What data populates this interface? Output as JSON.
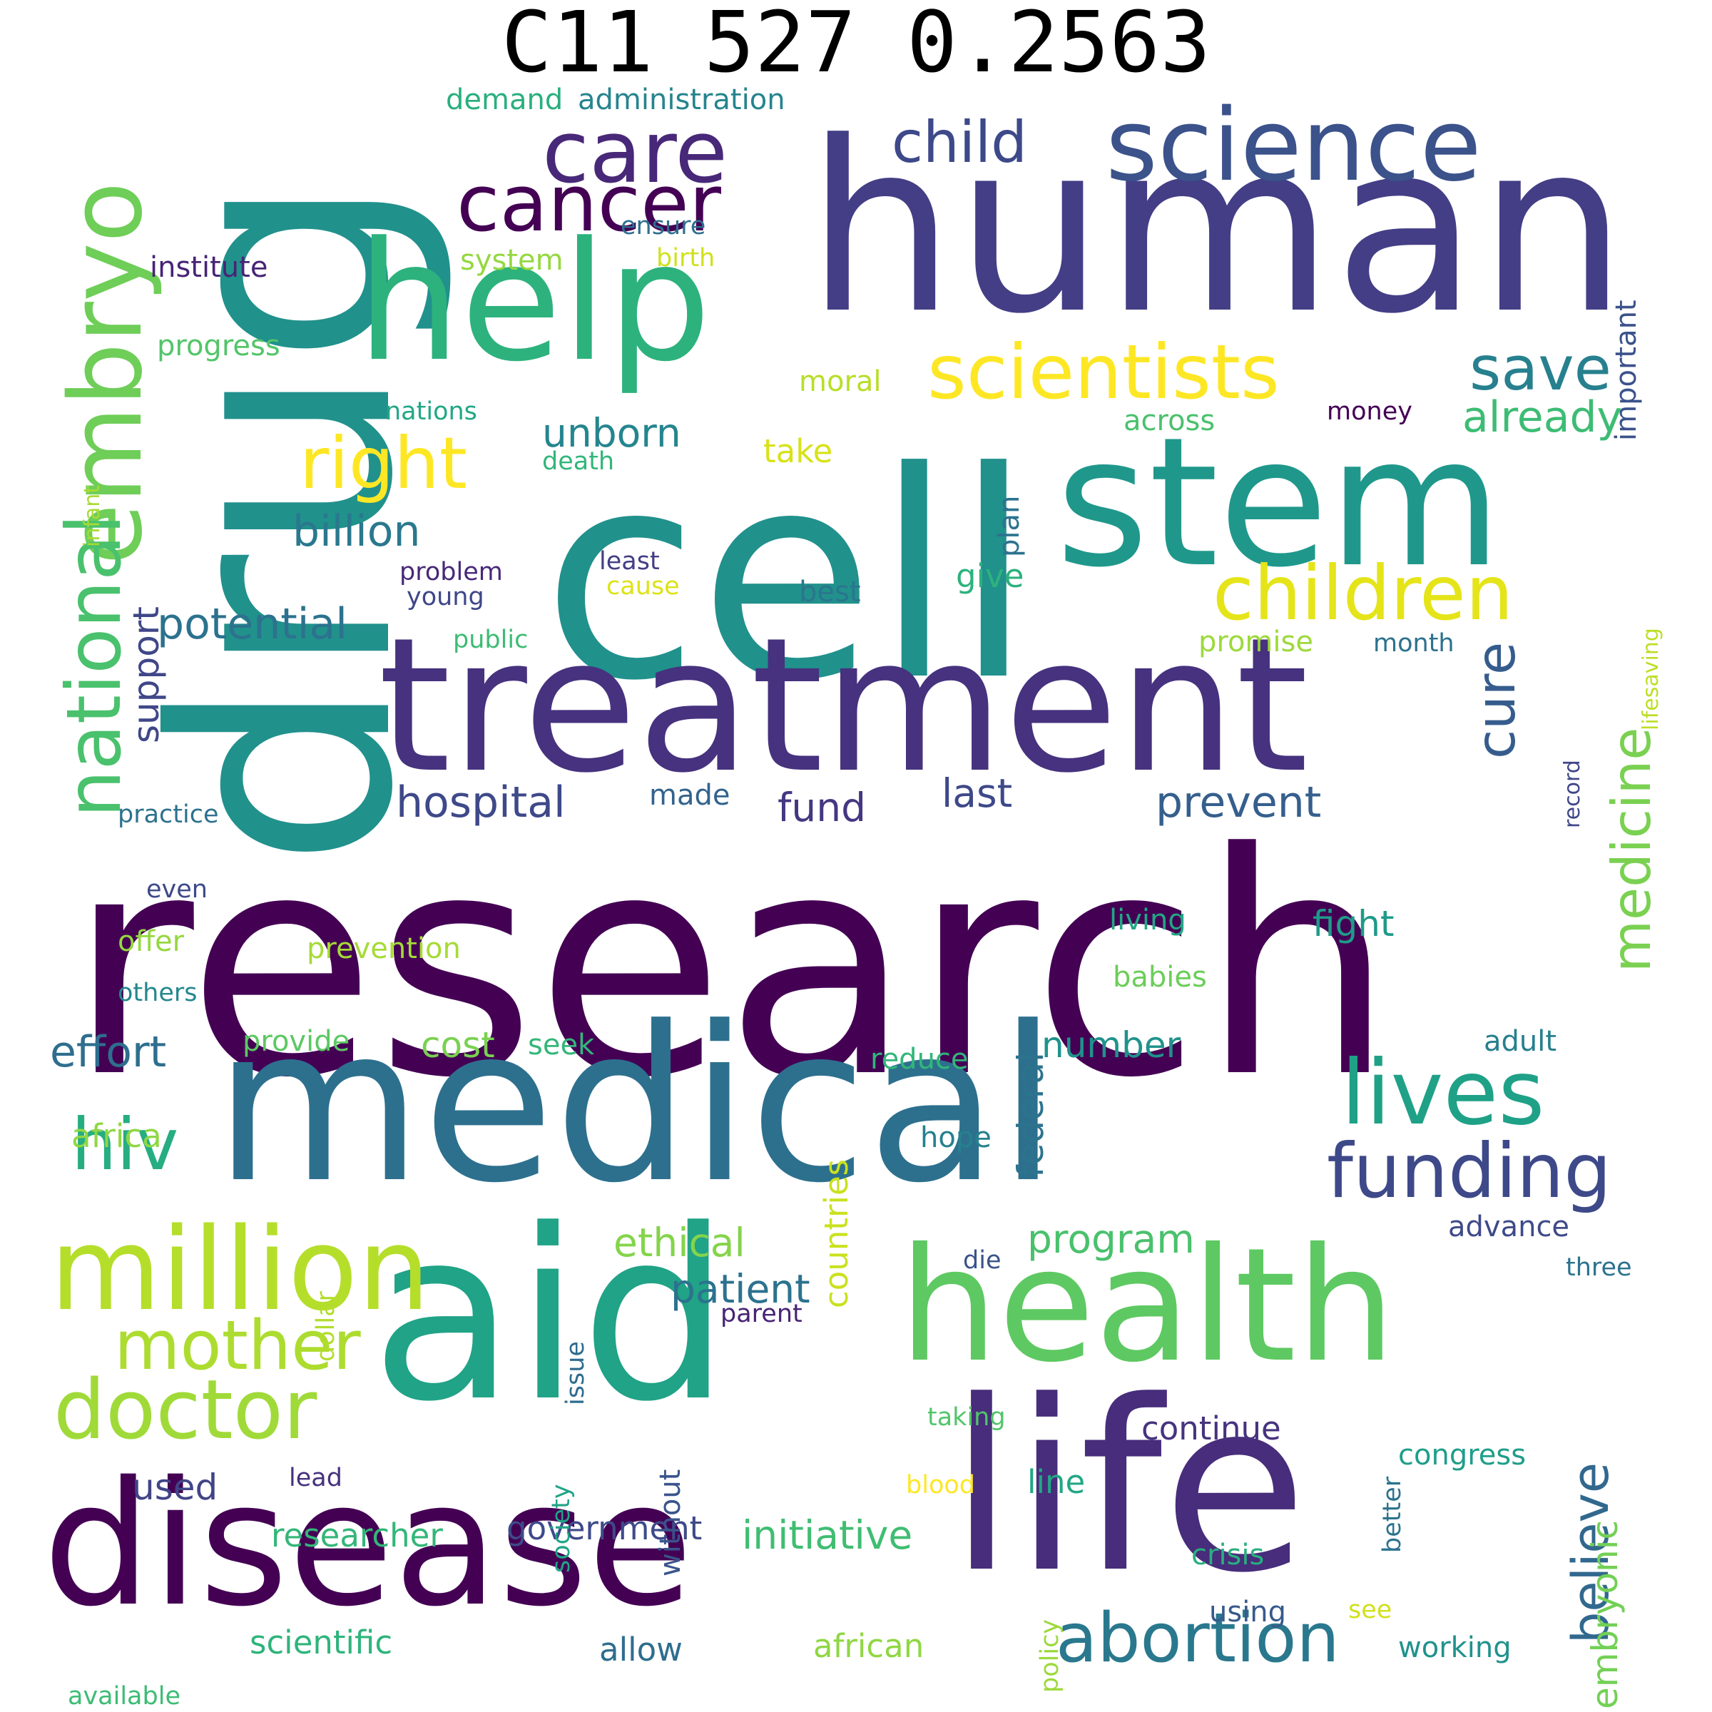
{
  "title": "C11 527 0.2563",
  "words": [
    {
      "text": "research",
      "color": "#440154"
    },
    {
      "text": "human",
      "color": "#433e85"
    },
    {
      "text": "drug",
      "color": "#21918c"
    },
    {
      "text": "cell",
      "color": "#21918c"
    },
    {
      "text": "medical",
      "color": "#2d708e"
    },
    {
      "text": "treatment",
      "color": "#46327e"
    },
    {
      "text": "aid",
      "color": "#20a386"
    },
    {
      "text": "life",
      "color": "#472d7b"
    },
    {
      "text": "disease",
      "color": "#440154"
    },
    {
      "text": "health",
      "color": "#5ec962"
    },
    {
      "text": "stem",
      "color": "#1f988b"
    },
    {
      "text": "help",
      "color": "#2db27d"
    },
    {
      "text": "million",
      "color": "#b5de2b"
    },
    {
      "text": "science",
      "color": "#3b528b"
    },
    {
      "text": "embryo",
      "color": "#6ece58"
    },
    {
      "text": "care",
      "color": "#482878"
    },
    {
      "text": "scientists",
      "color": "#fde725"
    },
    {
      "text": "cancer",
      "color": "#440154"
    },
    {
      "text": "national",
      "color": "#4ac16d"
    },
    {
      "text": "children",
      "color": "#e5e419"
    },
    {
      "text": "funding",
      "color": "#3e4989"
    },
    {
      "text": "lives",
      "color": "#1fa187"
    },
    {
      "text": "doctor",
      "color": "#a0da39"
    },
    {
      "text": "mother",
      "color": "#addc30"
    },
    {
      "text": "abortion",
      "color": "#2a788e"
    },
    {
      "text": "right",
      "color": "#fde725"
    },
    {
      "text": "medicine",
      "color": "#7ad151"
    },
    {
      "text": "child",
      "color": "#3e4989"
    },
    {
      "text": "hiv",
      "color": "#26ad81"
    },
    {
      "text": "save",
      "color": "#27808e"
    },
    {
      "text": "cure",
      "color": "#365c8d"
    },
    {
      "text": "believe",
      "color": "#31688e"
    },
    {
      "text": "embryonic",
      "color": "#73d056"
    },
    {
      "text": "billion",
      "color": "#2a788e"
    },
    {
      "text": "unborn",
      "color": "#25858e"
    },
    {
      "text": "hospital",
      "color": "#3e4989"
    },
    {
      "text": "potential",
      "color": "#2c728e"
    },
    {
      "text": "already",
      "color": "#3dbc74"
    },
    {
      "text": "effort",
      "color": "#2e6e8e"
    },
    {
      "text": "program",
      "color": "#4ac16d"
    },
    {
      "text": "prevent",
      "color": "#355f8d"
    },
    {
      "text": "ethical",
      "color": "#84d44b"
    },
    {
      "text": "patient",
      "color": "#2c728e"
    },
    {
      "text": "support",
      "color": "#3f4788"
    },
    {
      "text": "initiative",
      "color": "#40bd72"
    },
    {
      "text": "federal",
      "color": "#2c738e"
    },
    {
      "text": "fund",
      "color": "#453781"
    },
    {
      "text": "last",
      "color": "#3e4989"
    },
    {
      "text": "countries",
      "color": "#cae11f"
    },
    {
      "text": "number",
      "color": "#20928c"
    },
    {
      "text": "cost",
      "color": "#7ad151"
    },
    {
      "text": "used",
      "color": "#414487"
    },
    {
      "text": "continue",
      "color": "#46337e"
    },
    {
      "text": "researcher",
      "color": "#34b679"
    },
    {
      "text": "government",
      "color": "#3e4a89"
    },
    {
      "text": "scientific",
      "color": "#2fb47c"
    },
    {
      "text": "african",
      "color": "#8fd744"
    },
    {
      "text": "allow",
      "color": "#2e6e8e"
    },
    {
      "text": "africa",
      "color": "#8fd744"
    },
    {
      "text": "fight",
      "color": "#1f9a8a"
    },
    {
      "text": "important",
      "color": "#3b528b"
    },
    {
      "text": "congress",
      "color": "#1f9e89"
    },
    {
      "text": "line",
      "color": "#22a785"
    },
    {
      "text": "advance",
      "color": "#3e4a89"
    },
    {
      "text": "adult",
      "color": "#277f8e"
    },
    {
      "text": "give",
      "color": "#2db27d"
    },
    {
      "text": "take",
      "color": "#d8e219"
    },
    {
      "text": "moral",
      "color": "#b8de29"
    },
    {
      "text": "plan",
      "color": "#2c728e"
    },
    {
      "text": "made",
      "color": "#33638d"
    },
    {
      "text": "progress",
      "color": "#52c569"
    },
    {
      "text": "system",
      "color": "#95d840"
    },
    {
      "text": "institute",
      "color": "#482475"
    },
    {
      "text": "demand",
      "color": "#29af7f"
    },
    {
      "text": "administration",
      "color": "#25848e"
    },
    {
      "text": "ensure",
      "color": "#2e6f8e"
    },
    {
      "text": "birth",
      "color": "#d0e11c"
    },
    {
      "text": "nations",
      "color": "#22a785"
    },
    {
      "text": "across",
      "color": "#4ac16d"
    },
    {
      "text": "money",
      "color": "#440154"
    },
    {
      "text": "lifesaving",
      "color": "#bddf26"
    },
    {
      "text": "infant",
      "color": "#a8db34"
    },
    {
      "text": "death",
      "color": "#32b67a"
    },
    {
      "text": "least",
      "color": "#433e85"
    },
    {
      "text": "problem",
      "color": "#482878"
    },
    {
      "text": "young",
      "color": "#3f4788"
    },
    {
      "text": "cause",
      "color": "#dde318"
    },
    {
      "text": "best",
      "color": "#2a768e"
    },
    {
      "text": "promise",
      "color": "#9dd93b"
    },
    {
      "text": "month",
      "color": "#2c728e"
    },
    {
      "text": "record",
      "color": "#3f4788"
    },
    {
      "text": "public",
      "color": "#3dbc74"
    },
    {
      "text": "practice",
      "color": "#2d718e"
    },
    {
      "text": "even",
      "color": "#3e4989"
    },
    {
      "text": "offer",
      "color": "#95d840"
    },
    {
      "text": "others",
      "color": "#24878e"
    },
    {
      "text": "prevention",
      "color": "#a5db36"
    },
    {
      "text": "living",
      "color": "#22a785"
    },
    {
      "text": "babies",
      "color": "#6ccd5a"
    },
    {
      "text": "provide",
      "color": "#5cc863"
    },
    {
      "text": "seek",
      "color": "#34b679"
    },
    {
      "text": "reduce",
      "color": "#32b67a"
    },
    {
      "text": "hope",
      "color": "#26818e"
    },
    {
      "text": "dollar",
      "color": "#b2dd2d"
    },
    {
      "text": "issue",
      "color": "#2f6c8e"
    },
    {
      "text": "die",
      "color": "#3b528b"
    },
    {
      "text": "parent",
      "color": "#482475"
    },
    {
      "text": "three",
      "color": "#2c728e"
    },
    {
      "text": "without",
      "color": "#3a548c"
    },
    {
      "text": "society",
      "color": "#20a386"
    },
    {
      "text": "better",
      "color": "#2c738e"
    },
    {
      "text": "taking",
      "color": "#52c569"
    },
    {
      "text": "lead",
      "color": "#46327e"
    },
    {
      "text": "blood",
      "color": "#fde725"
    },
    {
      "text": "policy",
      "color": "#9dd93b"
    },
    {
      "text": "crisis",
      "color": "#29af7f"
    },
    {
      "text": "using",
      "color": "#375a8c"
    },
    {
      "text": "see",
      "color": "#d0e11c"
    },
    {
      "text": "working",
      "color": "#20928c"
    },
    {
      "text": "available",
      "color": "#3dbc74"
    }
  ]
}
